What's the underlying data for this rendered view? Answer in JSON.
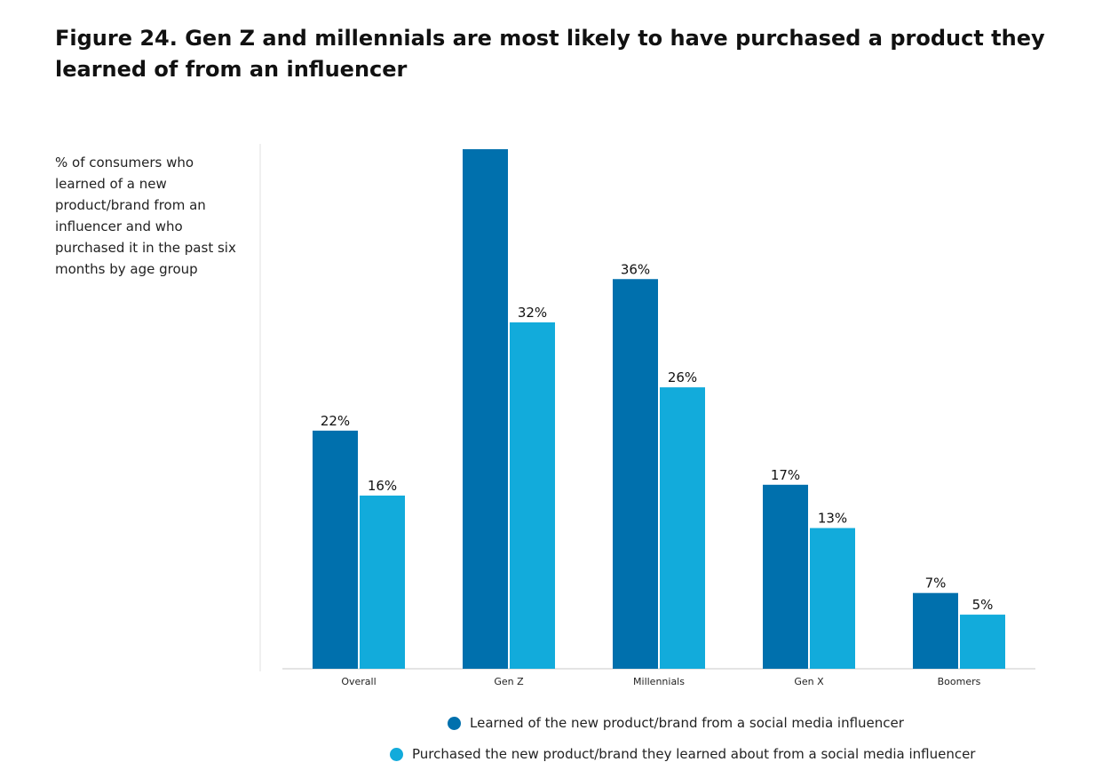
{
  "chart_data": {
    "type": "bar",
    "title": "Figure 24. Gen Z and millennials are most likely to have purchased a product they learned of from an influencer",
    "subtitle": "% of consumers who learned of a new product/brand from an influencer and who purchased it in the past six months by age group",
    "categories": [
      "Overall",
      "Gen Z",
      "Millennials",
      "Gen X",
      "Boomers"
    ],
    "series": [
      {
        "name": "Learned of the new product/brand from a social media influencer",
        "values": [
          22,
          48,
          36,
          17,
          7
        ],
        "value_labels": [
          "22%",
          "",
          "36%",
          "17%",
          "7%"
        ],
        "color": "#0070ad"
      },
      {
        "name": "Purchased the new product/brand they learned about from a social media influencer",
        "values": [
          16,
          32,
          26,
          13,
          5
        ],
        "value_labels": [
          "16%",
          "32%",
          "26%",
          "13%",
          "5%"
        ],
        "color": "#12abdb"
      }
    ],
    "ylim": [
      0,
      48
    ],
    "grid": false,
    "legend_position": "bottom"
  }
}
